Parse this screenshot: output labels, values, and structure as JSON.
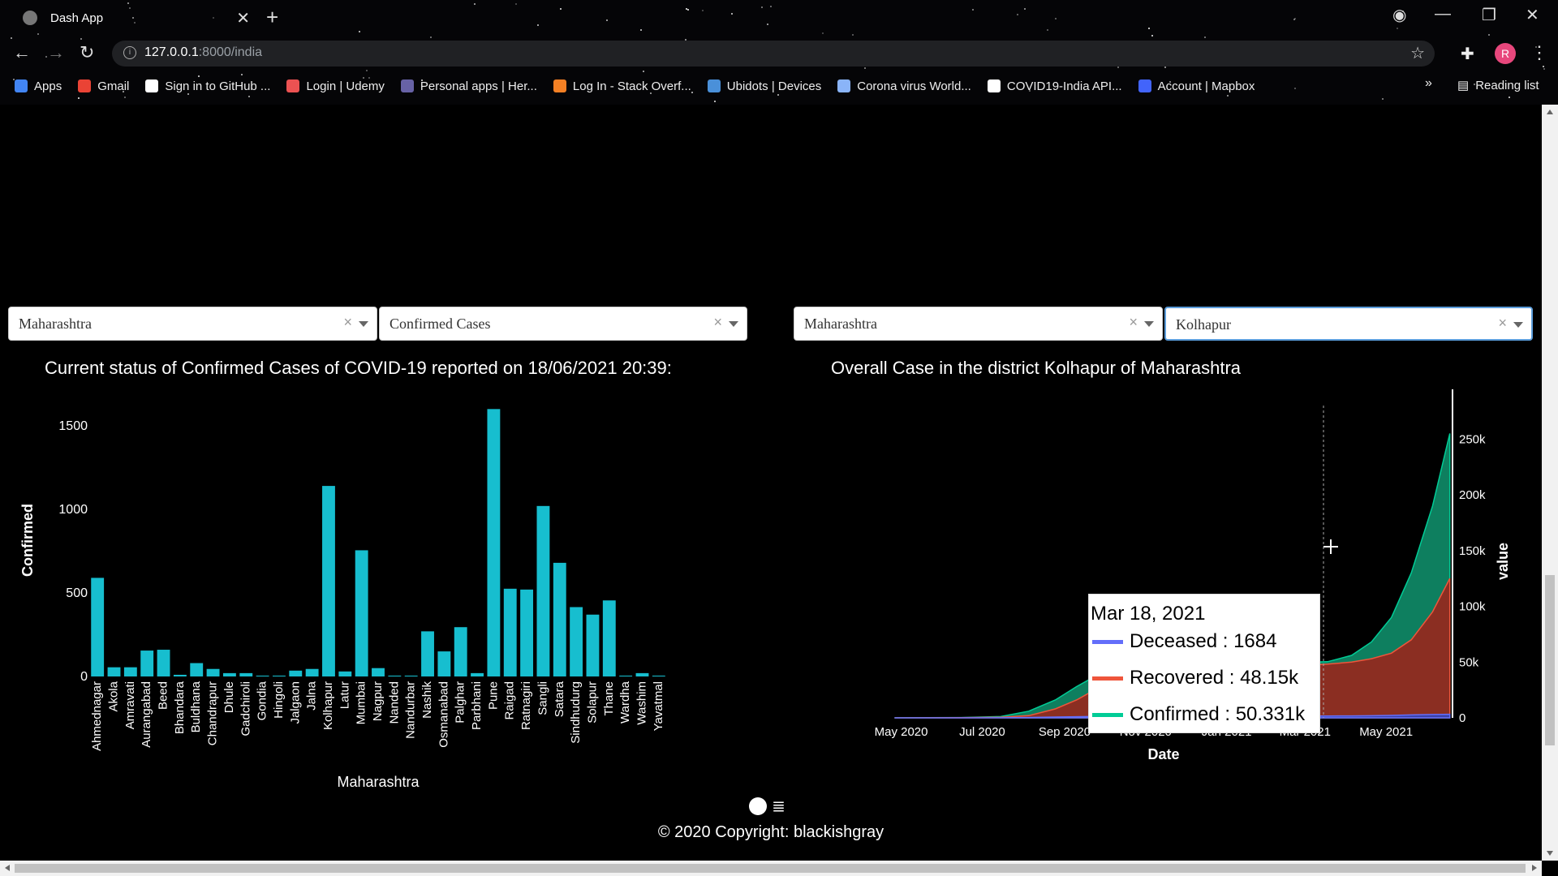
{
  "browser": {
    "tab_title": "Dash App",
    "url_host": "127.0.0.1",
    "url_path": ":8000/india",
    "avatar_letter": "R",
    "reading_list": "Reading list",
    "bookmarks": [
      {
        "label": "Apps",
        "icon": "apps-grid-icon",
        "color": "#4285f4"
      },
      {
        "label": "Gmail",
        "icon": "gmail-icon",
        "color": "#ea4335"
      },
      {
        "label": "Sign in to GitHub ...",
        "icon": "github-icon",
        "color": "#ffffff"
      },
      {
        "label": "Login | Udemy",
        "icon": "udemy-icon",
        "color": "#ec5252"
      },
      {
        "label": "Personal apps | Her...",
        "icon": "heroku-icon",
        "color": "#6762a6"
      },
      {
        "label": "Log In - Stack Overf...",
        "icon": "stackoverflow-icon",
        "color": "#f48024"
      },
      {
        "label": "Ubidots | Devices",
        "icon": "ubidots-icon",
        "color": "#4a90d9"
      },
      {
        "label": "Corona virus World...",
        "icon": "corona-icon",
        "color": "#8ab4f8"
      },
      {
        "label": "COVID19-India API...",
        "icon": "globe-icon",
        "color": "#ffffff"
      },
      {
        "label": "Account | Mapbox",
        "icon": "mapbox-icon",
        "color": "#4264fb"
      }
    ]
  },
  "left_panel": {
    "dropdown_state": "Maharashtra",
    "dropdown_metric": "Confirmed Cases",
    "title": "Current status of Confirmed Cases of COVID-19 reported on 18/06/2021 20:39:"
  },
  "right_panel": {
    "dropdown_state": "Maharashtra",
    "dropdown_district": "Kolhapur",
    "title": "Overall Case in the district Kolhapur of Maharashtra"
  },
  "tooltip": {
    "date": "Mar 18, 2021",
    "rows": [
      {
        "label": "Deceased : 1684",
        "color": "#636efa"
      },
      {
        "label": "Recovered : 48.15k",
        "color": "#ef553b"
      },
      {
        "label": "Confirmed : 50.331k",
        "color": "#00cc96"
      }
    ]
  },
  "footer": {
    "copyright": "© 2020 Copyright: blackishgray"
  },
  "chart_data": [
    {
      "type": "bar",
      "title": "Current status of Confirmed Cases of COVID-19 reported on 18/06/2021 20:39:",
      "xlabel": "Maharashtra",
      "ylabel": "Confirmed",
      "ylim": [
        0,
        1650
      ],
      "yticks": [
        0,
        500,
        1000,
        1500
      ],
      "bar_color": "#17becf",
      "categories": [
        "Ahmednagar",
        "Akola",
        "Amravati",
        "Aurangabad",
        "Beed",
        "Bhandara",
        "Buldhana",
        "Chandrapur",
        "Dhule",
        "Gadchiroli",
        "Gondia",
        "Hingoli",
        "Jalgaon",
        "Jalna",
        "Kolhapur",
        "Latur",
        "Mumbai",
        "Nagpur",
        "Nanded",
        "Nandurbar",
        "Nashik",
        "Osmanabad",
        "Palghar",
        "Parbhani",
        "Pune",
        "Raigad",
        "Ratnagiri",
        "Sangli",
        "Satara",
        "Sindhudurg",
        "Solapur",
        "Thane",
        "Wardha",
        "Washim",
        "Yavatmal"
      ],
      "values": [
        590,
        55,
        55,
        155,
        160,
        10,
        80,
        45,
        20,
        20,
        5,
        5,
        35,
        45,
        1140,
        30,
        755,
        50,
        5,
        5,
        270,
        150,
        295,
        20,
        1600,
        525,
        520,
        1020,
        680,
        415,
        370,
        455,
        5,
        20,
        5
      ]
    },
    {
      "type": "area",
      "title": "Overall Case in the district Kolhapur of Maharashtra",
      "xlabel": "Date",
      "ylabel": "value",
      "ylim": [
        0,
        280000
      ],
      "yticks": [
        "0",
        "50k",
        "100k",
        "150k",
        "200k",
        "250k"
      ],
      "xticks": [
        "May 2020",
        "Jul 2020",
        "Sep 2020",
        "Nov 2020",
        "Jan 2021",
        "Mar 2021",
        "May 2021"
      ],
      "x": [
        "2020-04-26",
        "2020-06-15",
        "2020-07-15",
        "2020-08-05",
        "2020-08-25",
        "2020-09-10",
        "2020-09-25",
        "2020-10-15",
        "2021-03-18",
        "2021-04-05",
        "2021-04-20",
        "2021-05-05",
        "2021-05-20",
        "2021-06-05",
        "2021-06-18"
      ],
      "series": [
        {
          "name": "Deceased",
          "color": "#636efa",
          "values": [
            0,
            0,
            50,
            300,
            700,
            1000,
            1300,
            1500,
            1684,
            1750,
            1900,
            2200,
            2600,
            3000,
            3200
          ]
        },
        {
          "name": "Recovered",
          "color": "#ef553b",
          "values": [
            0,
            200,
            500,
            2000,
            8000,
            16000,
            26000,
            38000,
            48150,
            50000,
            53000,
            58000,
            70000,
            95000,
            125000
          ]
        },
        {
          "name": "Confirmed",
          "color": "#00cc96",
          "values": [
            0,
            300,
            1200,
            6000,
            16000,
            28000,
            38000,
            45000,
            50331,
            56000,
            68000,
            90000,
            130000,
            190000,
            255000
          ]
        }
      ]
    }
  ]
}
